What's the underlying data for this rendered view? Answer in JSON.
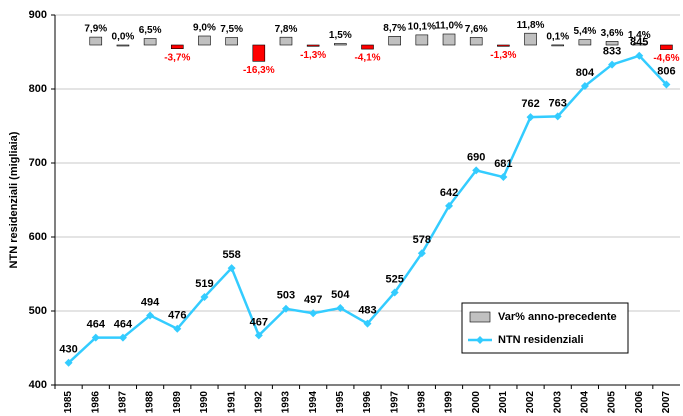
{
  "chart_data": {
    "type": "combo",
    "y_label": "NTN residenziali (migliaia)",
    "categories": [
      "1985",
      "1986",
      "1987",
      "1988",
      "1989",
      "1990",
      "1991",
      "1992",
      "1993",
      "1994",
      "1995",
      "1996",
      "1997",
      "1998",
      "1999",
      "2000",
      "2001",
      "2002",
      "2003",
      "2004",
      "2005",
      "2006",
      "2007"
    ],
    "ylim": [
      400,
      900
    ],
    "yticks": [
      400,
      500,
      600,
      700,
      800,
      900
    ],
    "y2lim": [
      -340,
      30
    ],
    "grid": true,
    "legend": "lower-right",
    "series": [
      {
        "name": "Var% anno-precedente",
        "type": "bar",
        "axis": "y2",
        "color": "#c0c0c0",
        "negative_color": "#ff0000",
        "values": [
          null,
          7.9,
          0.0,
          6.5,
          -3.7,
          9.0,
          7.5,
          -16.3,
          7.8,
          -1.3,
          1.5,
          -4.1,
          8.7,
          10.1,
          11.0,
          7.6,
          -1.3,
          11.8,
          0.1,
          5.4,
          3.6,
          1.4,
          -4.6
        ],
        "value_labels": [
          null,
          "7,9%",
          "0,0%",
          "6,5%",
          "-3,7%",
          "9,0%",
          "7,5%",
          "-16,3%",
          "7,8%",
          "-1,3%",
          "1,5%",
          "-4,1%",
          "8,7%",
          "10,1%",
          "11,0%",
          "7,6%",
          "-1,3%",
          "11,8%",
          "0,1%",
          "5,4%",
          "3,6%",
          "1,4%",
          "-4,6%"
        ]
      },
      {
        "name": "NTN residenziali",
        "type": "line",
        "color": "#33ccff",
        "values": [
          430,
          464,
          464,
          494,
          476,
          519,
          558,
          467,
          503,
          497,
          504,
          483,
          525,
          578,
          642,
          690,
          681,
          762,
          763,
          804,
          833,
          845,
          806
        ]
      }
    ]
  }
}
